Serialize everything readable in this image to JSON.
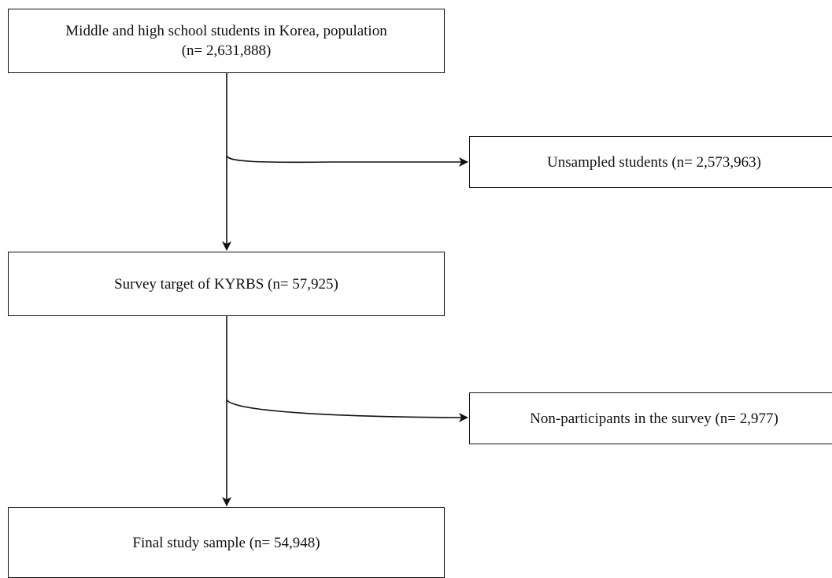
{
  "boxes": {
    "population": {
      "line1": "Middle and high school students in Korea, population",
      "line2": "(n= 2,631,888)"
    },
    "unsampled": {
      "label": "Unsampled students (n= 2,573,963)"
    },
    "survey_target": {
      "label": "Survey target of KYRBS (n= 57,925)"
    },
    "non_participants": {
      "label": "Non-participants in the survey (n= 2,977)"
    },
    "final_sample": {
      "label": "Final study sample (n= 54,948)"
    }
  },
  "colors": {
    "stroke": "#111111",
    "background": "#ffffff"
  }
}
